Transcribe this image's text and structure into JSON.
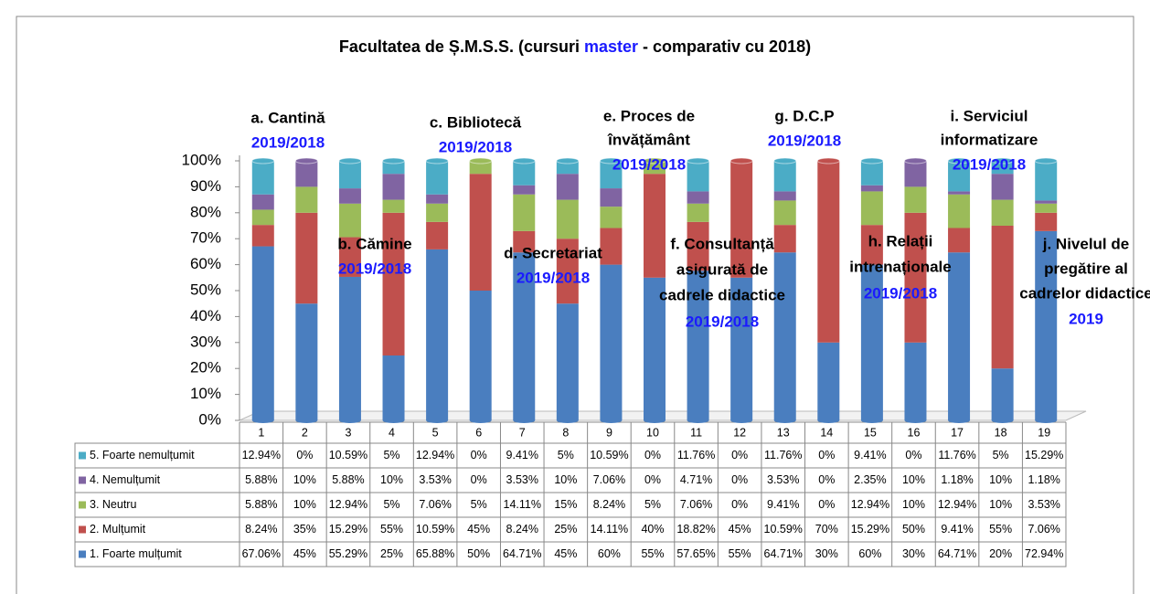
{
  "chart_data": {
    "type": "stacked-bar",
    "title_parts": [
      "Facultatea de Ș.M.S.S. (cursuri ",
      "master",
      " - comparativ cu 2018)"
    ],
    "categories": [
      "1",
      "2",
      "3",
      "4",
      "5",
      "6",
      "7",
      "8",
      "9",
      "10",
      "11",
      "12",
      "13",
      "14",
      "15",
      "16",
      "17",
      "18",
      "19"
    ],
    "series": [
      {
        "name": "1. Foarte mulțumit",
        "color": "#4a7ebf",
        "values": [
          67.06,
          45,
          55.29,
          25,
          65.88,
          50,
          64.71,
          45,
          60,
          55,
          57.65,
          55,
          64.71,
          30,
          60,
          30,
          64.71,
          20,
          72.94
        ],
        "value_labels": [
          "67.06%",
          "45%",
          "55.29%",
          "25%",
          "65.88%",
          "50%",
          "64.71%",
          "45%",
          "60%",
          "55%",
          "57.65%",
          "55%",
          "64.71%",
          "30%",
          "60%",
          "30%",
          "64.71%",
          "20%",
          "72.94%"
        ]
      },
      {
        "name": "2. Mulțumit",
        "color": "#c0504d",
        "values": [
          8.24,
          35,
          15.29,
          55,
          10.59,
          45,
          8.24,
          25,
          14.11,
          40,
          18.82,
          45,
          10.59,
          70,
          15.29,
          50,
          9.41,
          55,
          7.06
        ],
        "value_labels": [
          "8.24%",
          "35%",
          "15.29%",
          "55%",
          "10.59%",
          "45%",
          "8.24%",
          "25%",
          "14.11%",
          "40%",
          "18.82%",
          "45%",
          "10.59%",
          "70%",
          "15.29%",
          "50%",
          "9.41%",
          "55%",
          "7.06%"
        ]
      },
      {
        "name": "3. Neutru",
        "color": "#9bbb59",
        "values": [
          5.88,
          10,
          12.94,
          5,
          7.06,
          5,
          14.11,
          15,
          8.24,
          5,
          7.06,
          0,
          9.41,
          0,
          12.94,
          10,
          12.94,
          10,
          3.53
        ],
        "value_labels": [
          "5.88%",
          "10%",
          "12.94%",
          "5%",
          "7.06%",
          "5%",
          "14.11%",
          "15%",
          "8.24%",
          "5%",
          "7.06%",
          "0%",
          "9.41%",
          "0%",
          "12.94%",
          "10%",
          "12.94%",
          "10%",
          "3.53%"
        ]
      },
      {
        "name": "4. Nemulțumit",
        "color": "#8064a2",
        "values": [
          5.88,
          10,
          5.88,
          10,
          3.53,
          0,
          3.53,
          10,
          7.06,
          0,
          4.71,
          0,
          3.53,
          0,
          2.35,
          10,
          1.18,
          10,
          1.18
        ],
        "value_labels": [
          "5.88%",
          "10%",
          "5.88%",
          "10%",
          "3.53%",
          "0%",
          "3.53%",
          "10%",
          "7.06%",
          "0%",
          "4.71%",
          "0%",
          "3.53%",
          "0%",
          "2.35%",
          "10%",
          "1.18%",
          "10%",
          "1.18%"
        ]
      },
      {
        "name": "5. Foarte nemulțumit",
        "color": "#4bacc6",
        "values": [
          12.94,
          0,
          10.59,
          5,
          12.94,
          0,
          9.41,
          5,
          10.59,
          0,
          11.76,
          0,
          11.76,
          0,
          9.41,
          0,
          11.76,
          5,
          15.29
        ],
        "value_labels": [
          "12.94%",
          "0%",
          "10.59%",
          "5%",
          "12.94%",
          "0%",
          "9.41%",
          "5%",
          "10.59%",
          "0%",
          "11.76%",
          "0%",
          "11.76%",
          "0%",
          "9.41%",
          "0%",
          "11.76%",
          "5%",
          "15.29%"
        ]
      }
    ],
    "ylim": [
      0,
      100
    ],
    "yticks": [
      {
        "value": 0,
        "label": "0%"
      },
      {
        "value": 10,
        "label": "10%"
      },
      {
        "value": 20,
        "label": "20%"
      },
      {
        "value": 30,
        "label": "30%"
      },
      {
        "value": 40,
        "label": "40%"
      },
      {
        "value": 50,
        "label": "50%"
      },
      {
        "value": 60,
        "label": "60%"
      },
      {
        "value": 70,
        "label": "70%"
      },
      {
        "value": 80,
        "label": "80%"
      },
      {
        "value": 90,
        "label": "90%"
      },
      {
        "value": 100,
        "label": "100%"
      }
    ],
    "annotations": [
      {
        "lines": [
          "a. Cantină"
        ],
        "period": "2019/2018"
      },
      {
        "lines": [
          "b. Cămine"
        ],
        "period": "2019/2018"
      },
      {
        "lines": [
          "c. Bibliotecă"
        ],
        "period": "2019/2018"
      },
      {
        "lines": [
          "d. Secretariat"
        ],
        "period": "2019/2018"
      },
      {
        "lines": [
          "e. Proces de",
          "învățământ"
        ],
        "period": "2019/2018"
      },
      {
        "lines": [
          "f. Consultanță",
          "asigurată de",
          "cadrele didactice"
        ],
        "period": "2019/2018"
      },
      {
        "lines": [
          "g. D.C.P"
        ],
        "period": "2019/2018"
      },
      {
        "lines": [
          "h. Relații",
          "intrenaționale"
        ],
        "period": "2019/2018"
      },
      {
        "lines": [
          "i. Serviciul",
          "informatizare"
        ],
        "period": "2019/2018"
      },
      {
        "lines": [
          "j. Nivelul de",
          "pregătire al",
          "cadrelor didactice"
        ],
        "period": "2019"
      }
    ]
  }
}
